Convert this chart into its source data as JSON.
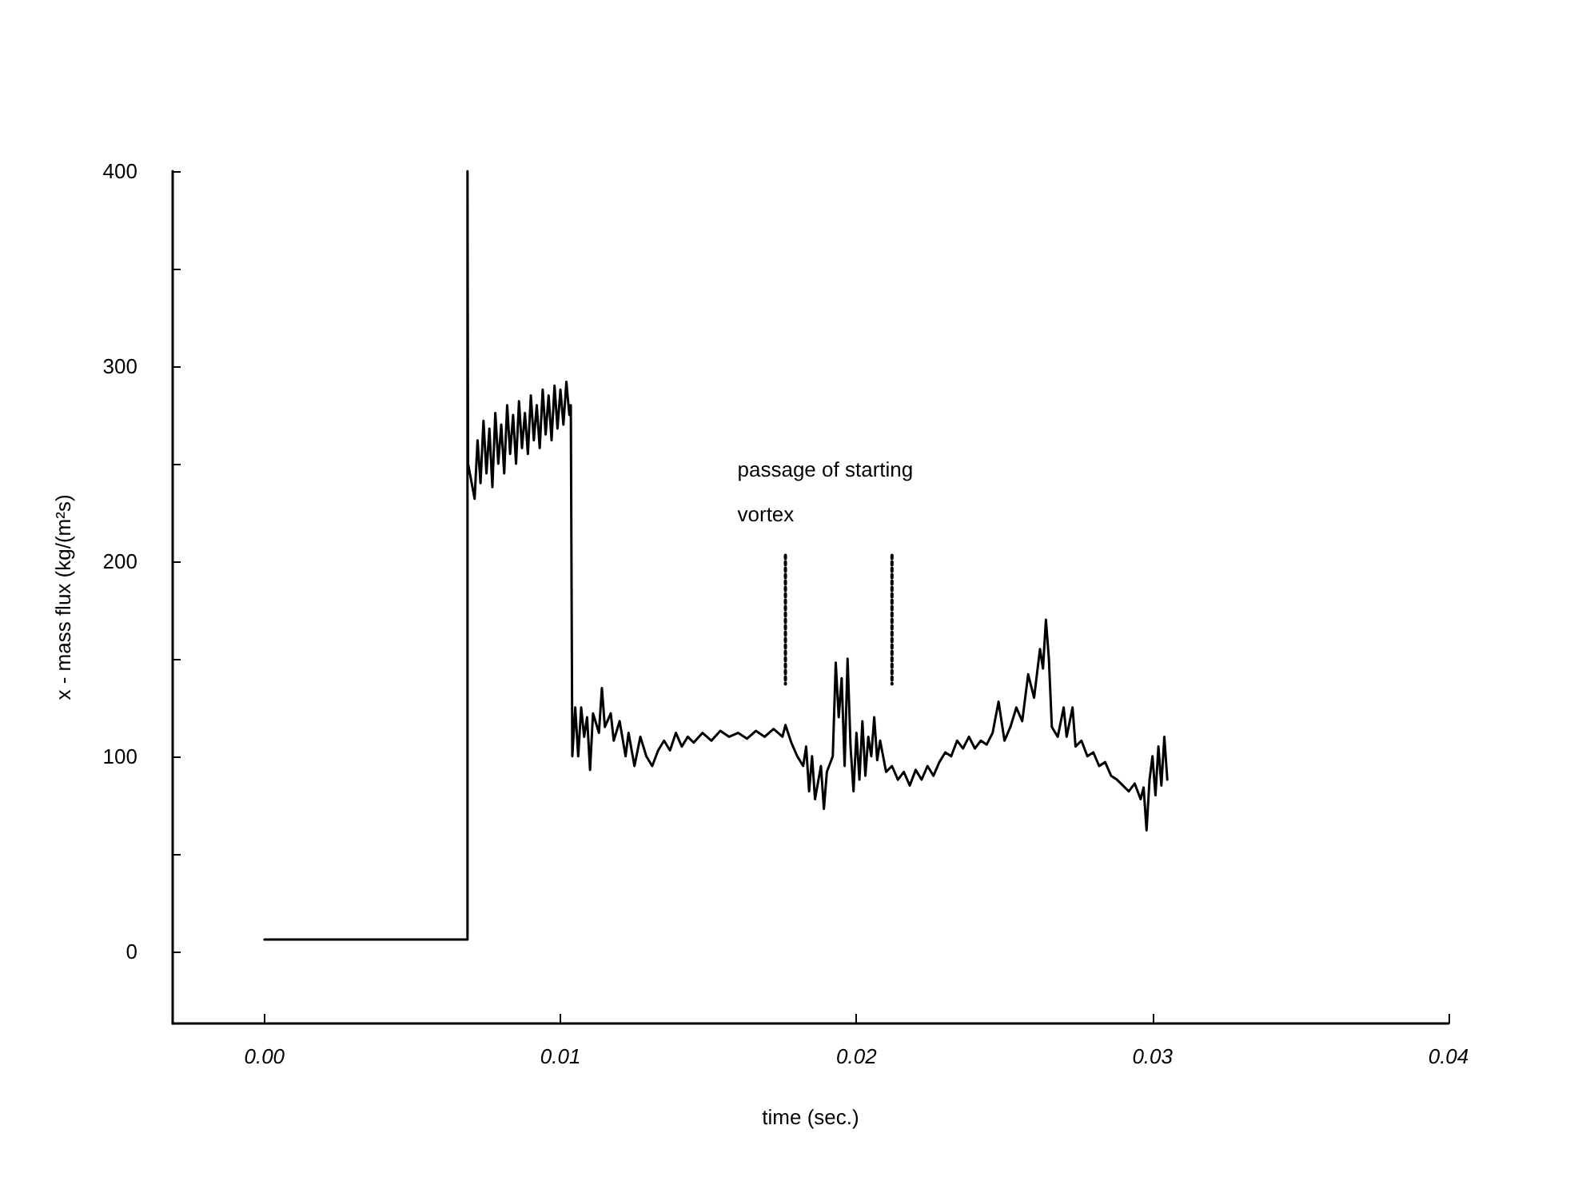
{
  "chart_data": {
    "type": "line",
    "xlabel": "time (sec.)",
    "ylabel": "x - mass flux (kg/(m²s)",
    "annotations": [
      {
        "text": "passage of starting vortex",
        "x": 0.0176,
        "y": 203
      }
    ],
    "xlim": [
      -0.0031,
      0.04
    ],
    "xticks": [
      {
        "value": 0,
        "label": "0.00"
      },
      {
        "value": 0.01,
        "label": "0.01"
      },
      {
        "value": 0.02,
        "label": "0.02"
      },
      {
        "value": 0.03,
        "label": "0.03"
      },
      {
        "value": 0.04,
        "label": "0.04"
      }
    ],
    "ylim": [
      -37,
      400
    ],
    "yticks": [
      0,
      {
        "value": 50,
        "label": null
      },
      100,
      {
        "value": 150,
        "label": null
      },
      200,
      {
        "value": 250,
        "label": null
      },
      300,
      {
        "value": 350,
        "label": null
      },
      400
    ],
    "grid": false,
    "marker": "none",
    "line_style": "solid",
    "series": [
      {
        "color": "#000000",
        "x": [
          0,
          0.00686,
          0.00686,
          0.00688,
          0.0071,
          0.0072,
          0.0073,
          0.0074,
          0.0075,
          0.0076,
          0.0077,
          0.0078,
          0.0079,
          0.008,
          0.0081,
          0.0082,
          0.0083,
          0.0084,
          0.0085,
          0.0086,
          0.0087,
          0.0088,
          0.0089,
          0.009,
          0.0091,
          0.0092,
          0.0093,
          0.0094,
          0.0095,
          0.0096,
          0.0097,
          0.0098,
          0.0099,
          0.01,
          0.0101,
          0.0102,
          0.0103,
          0.01035,
          0.0104,
          0.0105,
          0.0106,
          0.0107,
          0.0108,
          0.0109,
          0.011,
          0.0111,
          0.0113,
          0.0114,
          0.0115,
          0.0117,
          0.0118,
          0.012,
          0.0122,
          0.0123,
          0.0125,
          0.0127,
          0.0129,
          0.0131,
          0.0133,
          0.0135,
          0.0137,
          0.0139,
          0.0141,
          0.0143,
          0.0145,
          0.0148,
          0.0151,
          0.0154,
          0.0157,
          0.016,
          0.0163,
          0.0166,
          0.0169,
          0.0172,
          0.0175,
          0.0176,
          0.0178,
          0.018,
          0.0182,
          0.0183,
          0.0184,
          0.0185,
          0.0186,
          0.0188,
          0.0189,
          0.019,
          0.0192,
          0.0193,
          0.0194,
          0.0195,
          0.0196,
          0.0197,
          0.0198,
          0.0199,
          0.02,
          0.0201,
          0.0202,
          0.0203,
          0.0204,
          0.0205,
          0.0206,
          0.0207,
          0.0208,
          0.021,
          0.0212,
          0.0214,
          0.0216,
          0.0218,
          0.022,
          0.0222,
          0.0224,
          0.0226,
          0.0228,
          0.023,
          0.0232,
          0.0234,
          0.0236,
          0.0238,
          0.024,
          0.0242,
          0.0244,
          0.0246,
          0.0248,
          0.025,
          0.0252,
          0.0254,
          0.0256,
          0.0258,
          0.026,
          0.0262,
          0.0263,
          0.0264,
          0.0265,
          0.0266,
          0.0268,
          0.027,
          0.0271,
          0.0273,
          0.0274,
          0.0276,
          0.0278,
          0.028,
          0.0282,
          0.0284,
          0.0286,
          0.0288,
          0.029,
          0.0292,
          0.0294,
          0.0296,
          0.0297,
          0.0298,
          0.0299,
          0.03,
          0.0301,
          0.0302,
          0.0303,
          0.0304,
          0.0305
        ],
        "values": [
          6,
          6,
          400,
          250,
          232,
          262,
          240,
          272,
          245,
          268,
          238,
          276,
          250,
          270,
          245,
          280,
          255,
          275,
          250,
          282,
          258,
          276,
          255,
          285,
          262,
          280,
          258,
          288,
          265,
          285,
          262,
          290,
          268,
          288,
          270,
          292,
          275,
          280,
          100,
          125,
          100,
          125,
          110,
          120,
          93,
          122,
          112,
          135,
          115,
          122,
          108,
          118,
          100,
          112,
          95,
          110,
          100,
          95,
          103,
          108,
          103,
          112,
          105,
          110,
          107,
          112,
          108,
          113,
          110,
          112,
          109,
          113,
          110,
          114,
          110,
          116,
          107,
          100,
          95,
          105,
          82,
          100,
          78,
          95,
          73,
          92,
          100,
          148,
          120,
          140,
          95,
          150,
          105,
          82,
          112,
          88,
          118,
          90,
          110,
          100,
          120,
          98,
          108,
          92,
          95,
          88,
          92,
          85,
          93,
          88,
          95,
          90,
          97,
          102,
          100,
          108,
          104,
          110,
          104,
          108,
          106,
          112,
          128,
          108,
          115,
          125,
          118,
          142,
          130,
          155,
          145,
          170,
          150,
          115,
          110,
          125,
          110,
          125,
          105,
          108,
          100,
          102,
          95,
          97,
          90,
          88,
          85,
          82,
          86,
          78,
          84,
          62,
          88,
          100,
          80,
          105,
          85,
          110,
          88
        ]
      },
      {
        "color": "#000000",
        "line_style": "dotted",
        "x": [
          0.0176,
          0.0176
        ],
        "values": [
          203,
          137
        ]
      },
      {
        "color": "#000000",
        "line_style": "dotted",
        "x": [
          0.0212,
          0.0212
        ],
        "values": [
          203,
          137
        ]
      }
    ]
  }
}
